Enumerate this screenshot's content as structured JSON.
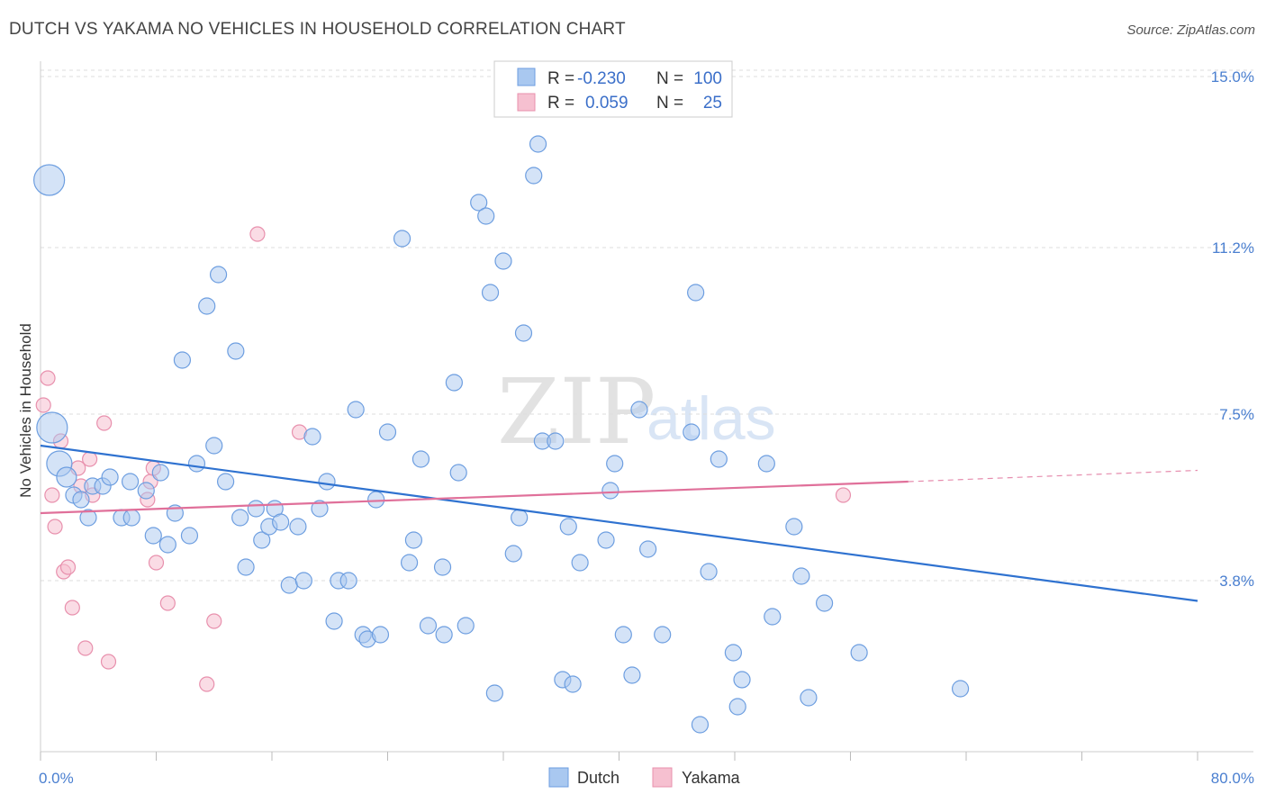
{
  "title": "DUTCH VS YAKAMA NO VEHICLES IN HOUSEHOLD CORRELATION CHART",
  "source": "Source: ZipAtlas.com",
  "watermark": {
    "zip": "ZIP",
    "atlas": "atlas"
  },
  "colors": {
    "dutch_fill": "#a9c8f0",
    "dutch_stroke": "#6d9ee0",
    "dutch_line": "#2f72d0",
    "yakama_fill": "#f6c0d0",
    "yakama_stroke": "#e890ad",
    "yakama_line": "#e0709a",
    "grid": "#dddddd",
    "tick_text": "#4a7fd0"
  },
  "legend": {
    "rows": [
      {
        "r_label": "R =",
        "r_value": "-0.230",
        "n_label": "N =",
        "n_value": "100"
      },
      {
        "r_label": "R =",
        "r_value": "0.059",
        "n_label": "N =",
        "n_value": "25"
      }
    ]
  },
  "bottom_legend": [
    "Dutch",
    "Yakama"
  ],
  "chart_data": {
    "type": "scatter",
    "title": "DUTCH VS YAKAMA NO VEHICLES IN HOUSEHOLD CORRELATION CHART",
    "xlabel": "",
    "ylabel": "No Vehicles in Household",
    "xlim": [
      0,
      80
    ],
    "ylim": [
      0,
      15.7
    ],
    "x_tick_labels": [
      "0.0%",
      "80.0%"
    ],
    "y_ticks": [
      3.8,
      7.5,
      11.2,
      15.0
    ],
    "y_tick_labels": [
      "3.8%",
      "7.5%",
      "11.2%",
      "15.0%"
    ],
    "grid": true,
    "series": [
      {
        "name": "Dutch",
        "r": -0.23,
        "n": 100,
        "trend": {
          "x0": 0,
          "y0": 6.8,
          "x1": 80,
          "y1": 3.35
        },
        "points": [
          [
            0.6,
            12.7,
            3
          ],
          [
            0.8,
            7.2,
            3
          ],
          [
            1.3,
            6.4,
            2
          ],
          [
            1.8,
            6.1,
            1.5
          ],
          [
            2.3,
            5.7,
            1
          ],
          [
            2.8,
            5.6,
            1
          ],
          [
            3.3,
            5.2,
            1
          ],
          [
            3.6,
            5.9,
            1
          ],
          [
            4.3,
            5.9,
            1
          ],
          [
            4.8,
            6.1,
            1
          ],
          [
            5.6,
            5.2,
            1
          ],
          [
            6.3,
            5.2,
            1
          ],
          [
            6.2,
            6.0,
            1
          ],
          [
            7.3,
            5.8,
            1
          ],
          [
            7.8,
            4.8,
            1
          ],
          [
            8.3,
            6.2,
            1
          ],
          [
            8.8,
            4.6,
            1
          ],
          [
            9.3,
            5.3,
            1
          ],
          [
            9.8,
            8.7,
            1
          ],
          [
            10.3,
            4.8,
            1
          ],
          [
            10.8,
            6.4,
            1
          ],
          [
            11.5,
            9.9,
            1
          ],
          [
            12.0,
            6.8,
            1
          ],
          [
            12.3,
            10.6,
            1
          ],
          [
            12.8,
            6.0,
            1
          ],
          [
            13.5,
            8.9,
            1
          ],
          [
            13.8,
            5.2,
            1
          ],
          [
            14.2,
            4.1,
            1
          ],
          [
            14.9,
            5.4,
            1
          ],
          [
            15.3,
            4.7,
            1
          ],
          [
            15.8,
            5.0,
            1
          ],
          [
            16.2,
            5.4,
            1
          ],
          [
            16.6,
            5.1,
            1
          ],
          [
            17.2,
            3.7,
            1
          ],
          [
            17.8,
            5.0,
            1
          ],
          [
            18.2,
            3.8,
            1
          ],
          [
            18.8,
            7.0,
            1
          ],
          [
            19.3,
            5.4,
            1
          ],
          [
            19.8,
            6.0,
            1
          ],
          [
            20.3,
            2.9,
            1
          ],
          [
            20.6,
            3.8,
            1
          ],
          [
            21.3,
            3.8,
            1
          ],
          [
            21.8,
            7.6,
            1
          ],
          [
            22.3,
            2.6,
            1
          ],
          [
            22.6,
            2.5,
            1
          ],
          [
            23.2,
            5.6,
            1
          ],
          [
            23.5,
            2.6,
            1
          ],
          [
            24.0,
            7.1,
            1
          ],
          [
            25.0,
            11.4,
            1
          ],
          [
            25.5,
            4.2,
            1
          ],
          [
            25.8,
            4.7,
            1
          ],
          [
            26.3,
            6.5,
            1
          ],
          [
            26.8,
            2.8,
            1
          ],
          [
            27.8,
            4.1,
            1
          ],
          [
            27.9,
            2.6,
            1
          ],
          [
            28.6,
            8.2,
            1
          ],
          [
            28.9,
            6.2,
            1
          ],
          [
            29.4,
            2.8,
            1
          ],
          [
            30.3,
            12.2,
            1
          ],
          [
            30.8,
            11.9,
            1
          ],
          [
            31.1,
            10.2,
            1
          ],
          [
            31.4,
            1.3,
            1
          ],
          [
            32.0,
            10.9,
            1
          ],
          [
            32.7,
            4.4,
            1
          ],
          [
            33.1,
            5.2,
            1
          ],
          [
            33.4,
            9.3,
            1
          ],
          [
            34.1,
            12.8,
            1
          ],
          [
            34.4,
            13.5,
            1
          ],
          [
            34.7,
            6.9,
            1
          ],
          [
            35.6,
            6.9,
            1
          ],
          [
            36.1,
            1.6,
            1
          ],
          [
            36.5,
            5.0,
            1
          ],
          [
            36.8,
            1.5,
            1
          ],
          [
            37.3,
            4.2,
            1
          ],
          [
            39.1,
            4.7,
            1
          ],
          [
            39.4,
            5.8,
            1
          ],
          [
            39.7,
            6.4,
            1
          ],
          [
            40.3,
            2.6,
            1
          ],
          [
            40.9,
            1.7,
            1
          ],
          [
            41.4,
            7.6,
            1
          ],
          [
            42.0,
            4.5,
            1
          ],
          [
            43.0,
            2.6,
            1
          ],
          [
            45.0,
            7.1,
            1
          ],
          [
            45.3,
            10.2,
            1
          ],
          [
            45.6,
            0.6,
            1
          ],
          [
            46.2,
            4.0,
            1
          ],
          [
            46.9,
            6.5,
            1
          ],
          [
            47.9,
            2.2,
            1
          ],
          [
            48.5,
            1.6,
            1
          ],
          [
            48.2,
            1.0,
            1
          ],
          [
            50.2,
            6.4,
            1
          ],
          [
            50.6,
            3.0,
            1
          ],
          [
            52.1,
            5.0,
            1
          ],
          [
            52.6,
            3.9,
            1
          ],
          [
            53.1,
            1.2,
            1
          ],
          [
            54.2,
            3.3,
            1
          ],
          [
            56.6,
            2.2,
            1
          ],
          [
            63.6,
            1.4,
            1
          ]
        ]
      },
      {
        "name": "Yakama",
        "r": 0.059,
        "n": 25,
        "trend": {
          "x0": 0,
          "y0": 5.3,
          "x1": 60,
          "y1": 6.0
        },
        "trend_dashed": {
          "x0": 60,
          "y0": 6.0,
          "x1": 80,
          "y1": 6.25
        },
        "points": [
          [
            0.2,
            7.7,
            1
          ],
          [
            0.5,
            8.3,
            1
          ],
          [
            0.8,
            5.7,
            1
          ],
          [
            1.0,
            5.0,
            1
          ],
          [
            1.4,
            6.9,
            1
          ],
          [
            1.6,
            4.0,
            1
          ],
          [
            1.9,
            4.1,
            1
          ],
          [
            2.2,
            3.2,
            1
          ],
          [
            2.6,
            6.3,
            1
          ],
          [
            2.8,
            5.9,
            1
          ],
          [
            3.1,
            2.3,
            1
          ],
          [
            3.4,
            6.5,
            1
          ],
          [
            3.6,
            5.7,
            1
          ],
          [
            4.4,
            7.3,
            1
          ],
          [
            4.7,
            2.0,
            1
          ],
          [
            7.4,
            5.6,
            1
          ],
          [
            7.6,
            6.0,
            1
          ],
          [
            7.8,
            6.3,
            1
          ],
          [
            8.0,
            4.2,
            1
          ],
          [
            8.8,
            3.3,
            1
          ],
          [
            11.5,
            1.5,
            1
          ],
          [
            12.0,
            2.9,
            1
          ],
          [
            15.0,
            11.5,
            1
          ],
          [
            17.9,
            7.1,
            1
          ],
          [
            55.5,
            5.7,
            1
          ]
        ]
      }
    ]
  }
}
